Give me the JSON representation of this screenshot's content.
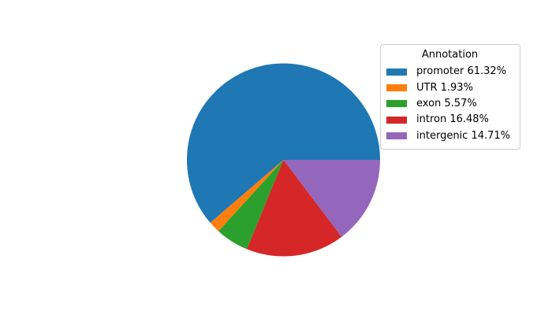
{
  "chart_data": {
    "type": "pie",
    "legend_title": "Annotation",
    "categories": [
      "promoter",
      "UTR",
      "exon",
      "intron",
      "intergenic"
    ],
    "values": [
      61.32,
      1.93,
      5.57,
      16.48,
      14.71
    ],
    "unit": "%",
    "colors": [
      "#1f77b4",
      "#ff7f0e",
      "#2ca02c",
      "#d62728",
      "#9467bd"
    ],
    "legend_entries": [
      "promoter 61.32%",
      "UTR 1.93%",
      "exon 5.57%",
      "intron 16.48%",
      "intergenic 14.71%"
    ],
    "legend_position": "upper right",
    "start_angle_deg": 0,
    "counterclockwise": true,
    "background_color": "#ffffff",
    "legend_border_color": "#cccccc"
  }
}
